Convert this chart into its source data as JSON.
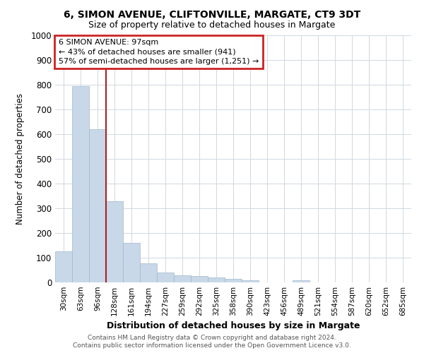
{
  "title_line1": "6, SIMON AVENUE, CLIFTONVILLE, MARGATE, CT9 3DT",
  "title_line2": "Size of property relative to detached houses in Margate",
  "xlabel": "Distribution of detached houses by size in Margate",
  "ylabel": "Number of detached properties",
  "categories": [
    "30sqm",
    "63sqm",
    "96sqm",
    "128sqm",
    "161sqm",
    "194sqm",
    "227sqm",
    "259sqm",
    "292sqm",
    "325sqm",
    "358sqm",
    "390sqm",
    "423sqm",
    "456sqm",
    "489sqm",
    "521sqm",
    "554sqm",
    "587sqm",
    "620sqm",
    "652sqm",
    "685sqm"
  ],
  "values": [
    125,
    795,
    620,
    330,
    160,
    78,
    40,
    28,
    26,
    20,
    14,
    8,
    0,
    0,
    10,
    0,
    0,
    0,
    0,
    0,
    0
  ],
  "bar_color": "#c8d8e8",
  "bar_edge_color": "#a0b8cc",
  "vline_x_index": 2,
  "vline_color": "#aa2222",
  "annotation_box_color": "#cc2222",
  "annotation_text_line1": "6 SIMON AVENUE: 97sqm",
  "annotation_text_line2": "← 43% of detached houses are smaller (941)",
  "annotation_text_line3": "57% of semi-detached houses are larger (1,251) →",
  "ylim": [
    0,
    1000
  ],
  "yticks": [
    0,
    100,
    200,
    300,
    400,
    500,
    600,
    700,
    800,
    900,
    1000
  ],
  "footer_line1": "Contains HM Land Registry data © Crown copyright and database right 2024.",
  "footer_line2": "Contains public sector information licensed under the Open Government Licence v3.0.",
  "bg_color": "#ffffff",
  "grid_color": "#d0d8e0"
}
